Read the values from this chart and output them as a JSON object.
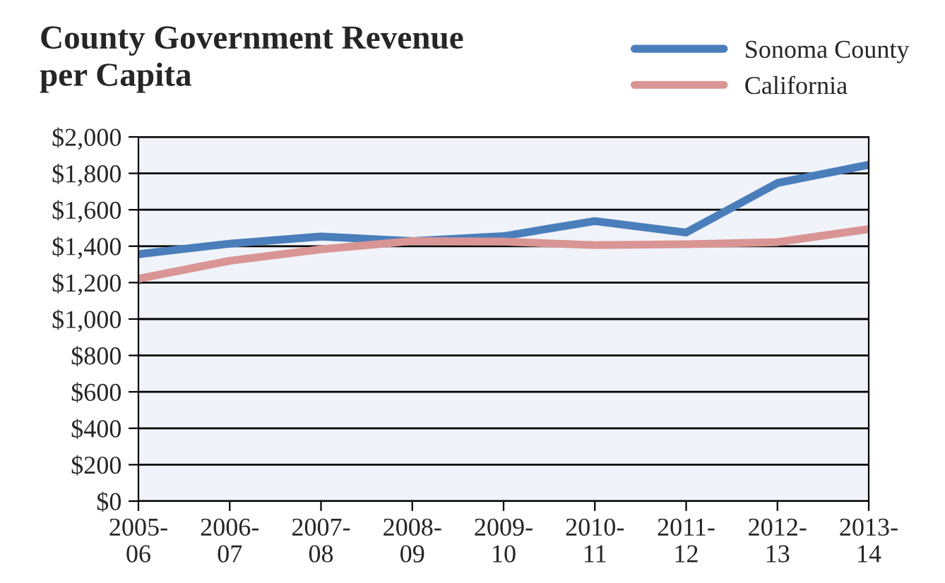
{
  "chart_data": {
    "type": "line",
    "title": "County Government Revenue\nper Capita",
    "categories": [
      "2005-06",
      "2006-07",
      "2007-08",
      "2008-09",
      "2009-10",
      "2010-11",
      "2011-12",
      "2012-13",
      "2013-14"
    ],
    "series": [
      {
        "name": "Sonoma County",
        "color": "#4a7ebb",
        "values": [
          1356,
          1414,
          1453,
          1428,
          1455,
          1538,
          1475,
          1747,
          1847
        ]
      },
      {
        "name": "California",
        "color": "#d99594",
        "values": [
          1221,
          1320,
          1383,
          1428,
          1425,
          1406,
          1411,
          1422,
          1494
        ]
      }
    ],
    "ylim": [
      0,
      2000
    ],
    "yticks": [
      {
        "value": 0,
        "label": "$0"
      },
      {
        "value": 200,
        "label": "$200"
      },
      {
        "value": 400,
        "label": "$400"
      },
      {
        "value": 600,
        "label": "$600"
      },
      {
        "value": 800,
        "label": "$800"
      },
      {
        "value": 1000,
        "label": "$1,000"
      },
      {
        "value": 1200,
        "label": "$1,200"
      },
      {
        "value": 1400,
        "label": "$1,400"
      },
      {
        "value": 1600,
        "label": "$1,600"
      },
      {
        "value": 1800,
        "label": "$1,800"
      },
      {
        "value": 2000,
        "label": "$2,000"
      }
    ],
    "grid": "y",
    "legend": "top right",
    "marker": "none",
    "line_style": "solid"
  }
}
